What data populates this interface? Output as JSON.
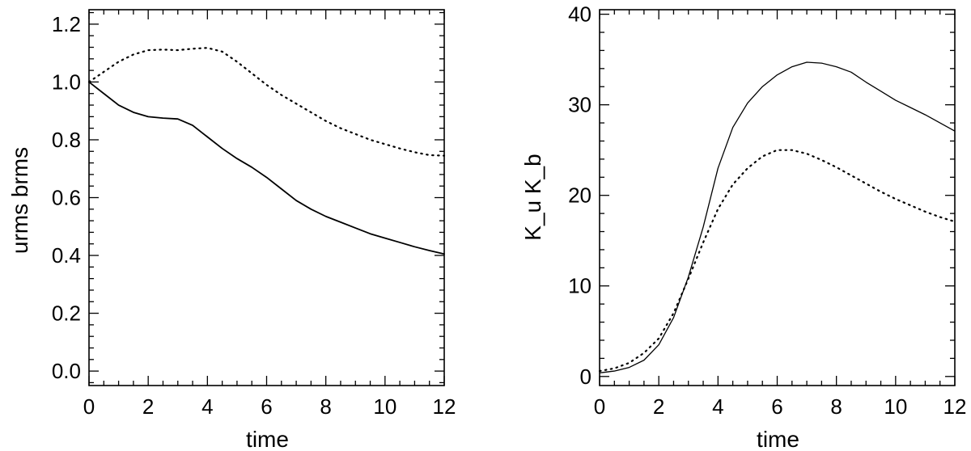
{
  "chart_data": [
    {
      "type": "line",
      "xlabel": "time",
      "ylabel": "urms brms",
      "xlim": [
        0,
        12
      ],
      "ylim": [
        -0.05,
        1.25
      ],
      "xticks": [
        0,
        2,
        4,
        6,
        8,
        10,
        12
      ],
      "xtick_labels": [
        "0",
        "2",
        "4",
        "6",
        "8",
        "10",
        "12"
      ],
      "yticks": [
        0.0,
        0.2,
        0.4,
        0.6,
        0.8,
        1.0,
        1.2
      ],
      "ytick_labels": [
        "0.0",
        "0.2",
        "0.4",
        "0.6",
        "0.8",
        "1.0",
        "1.2"
      ],
      "grid": false,
      "series": [
        {
          "style": "solid",
          "x": [
            0,
            0.5,
            1,
            1.5,
            2,
            2.5,
            3,
            3.5,
            4,
            4.5,
            5,
            5.5,
            6,
            6.5,
            7,
            7.5,
            8,
            8.5,
            9,
            9.5,
            10,
            10.5,
            11,
            11.5,
            12
          ],
          "y": [
            1.0,
            0.96,
            0.92,
            0.895,
            0.88,
            0.875,
            0.872,
            0.85,
            0.81,
            0.77,
            0.735,
            0.705,
            0.67,
            0.63,
            0.59,
            0.56,
            0.535,
            0.515,
            0.495,
            0.475,
            0.46,
            0.445,
            0.43,
            0.417,
            0.405
          ]
        },
        {
          "style": "dotted",
          "x": [
            0,
            0.5,
            1,
            1.5,
            2,
            2.5,
            3,
            3.5,
            4,
            4.5,
            5,
            5.5,
            6,
            6.5,
            7,
            7.5,
            8,
            8.5,
            9,
            9.5,
            10,
            10.5,
            11,
            11.5,
            12
          ],
          "y": [
            1.0,
            1.035,
            1.07,
            1.095,
            1.11,
            1.112,
            1.11,
            1.115,
            1.118,
            1.105,
            1.07,
            1.03,
            0.99,
            0.955,
            0.925,
            0.895,
            0.865,
            0.84,
            0.82,
            0.8,
            0.785,
            0.77,
            0.757,
            0.747,
            0.745
          ]
        }
      ]
    },
    {
      "type": "line",
      "xlabel": "time",
      "ylabel": "K_u K_b",
      "xlim": [
        0,
        12
      ],
      "ylim": [
        -1,
        40.5
      ],
      "xticks": [
        0,
        2,
        4,
        6,
        8,
        10,
        12
      ],
      "xtick_labels": [
        "0",
        "2",
        "4",
        "6",
        "8",
        "10",
        "12"
      ],
      "yticks": [
        0,
        10,
        20,
        30,
        40
      ],
      "ytick_labels": [
        "0",
        "10",
        "20",
        "30",
        "40"
      ],
      "grid": false,
      "series": [
        {
          "style": "solid",
          "x": [
            0,
            0.5,
            1,
            1.5,
            2,
            2.5,
            3,
            3.5,
            4,
            4.5,
            5,
            5.5,
            6,
            6.5,
            7,
            7.5,
            8,
            8.5,
            9,
            9.5,
            10,
            10.5,
            11,
            11.5,
            12
          ],
          "y": [
            0.4,
            0.6,
            1.0,
            1.8,
            3.5,
            6.5,
            11.0,
            16.5,
            23.0,
            27.5,
            30.2,
            32.0,
            33.3,
            34.2,
            34.7,
            34.6,
            34.2,
            33.6,
            32.5,
            31.5,
            30.5,
            29.7,
            28.9,
            28.0,
            27.1
          ]
        },
        {
          "style": "dotted",
          "x": [
            0,
            0.5,
            1,
            1.5,
            2,
            2.5,
            3,
            3.5,
            4,
            4.5,
            5,
            5.5,
            6,
            6.5,
            7,
            7.5,
            8,
            8.5,
            9,
            9.5,
            10,
            10.5,
            11,
            11.5,
            12
          ],
          "y": [
            0.6,
            0.9,
            1.5,
            2.6,
            4.2,
            7.0,
            10.8,
            14.8,
            18.5,
            21.2,
            23.0,
            24.3,
            25.0,
            25.0,
            24.6,
            23.9,
            23.1,
            22.2,
            21.3,
            20.4,
            19.6,
            18.9,
            18.2,
            17.6,
            17.1
          ]
        }
      ]
    }
  ]
}
